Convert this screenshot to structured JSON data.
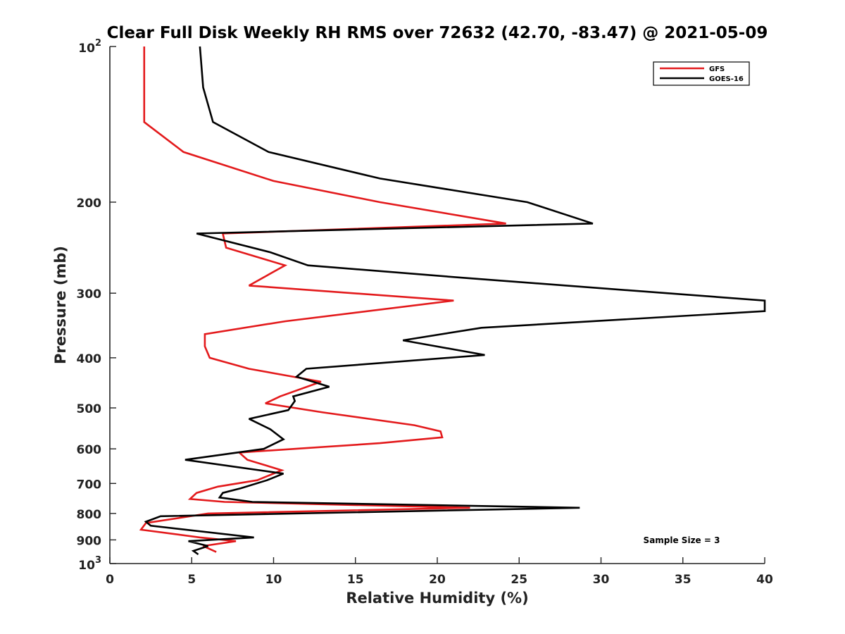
{
  "chart_data": {
    "type": "line",
    "title": "Clear Full Disk Weekly RH RMS over 72632 (42.70, -83.47) @ 2021-05-09",
    "xlabel": "Relative Humidity (%)",
    "ylabel": "Pressure (mb)",
    "xlim": [
      0,
      40
    ],
    "ylim": [
      100,
      1000
    ],
    "yscale": "log",
    "y_reversed": true,
    "grid": false,
    "legend_position": "top-right",
    "x_ticks": [
      {
        "value": 0,
        "label": "0"
      },
      {
        "value": 5,
        "label": "5"
      },
      {
        "value": 10,
        "label": "10"
      },
      {
        "value": 15,
        "label": "15"
      },
      {
        "value": 20,
        "label": "20"
      },
      {
        "value": 25,
        "label": "25"
      },
      {
        "value": 30,
        "label": "30"
      },
      {
        "value": 35,
        "label": "35"
      },
      {
        "value": 40,
        "label": "40"
      }
    ],
    "y_ticks": [
      {
        "value": 100,
        "label": "",
        "base": "10",
        "exp": "2"
      },
      {
        "value": 200,
        "label": "200"
      },
      {
        "value": 300,
        "label": "300"
      },
      {
        "value": 400,
        "label": "400"
      },
      {
        "value": 500,
        "label": "500"
      },
      {
        "value": 600,
        "label": "600"
      },
      {
        "value": 700,
        "label": "700"
      },
      {
        "value": 800,
        "label": "800"
      },
      {
        "value": 900,
        "label": "900"
      },
      {
        "value": 1000,
        "label": "",
        "base": "10",
        "exp": "3"
      }
    ],
    "series": [
      {
        "name": "GFS",
        "color": "#e31a1c",
        "x": [
          2.1,
          2.1,
          2.1,
          4.5,
          10,
          16.5,
          24.2,
          6.9,
          7.1,
          10.7,
          8.5,
          21.0,
          10.7,
          5.8,
          5.8,
          6.1,
          8.5,
          12.9,
          10.4,
          9.5,
          13.0,
          18.6,
          20.2,
          20.3,
          16.5,
          7.9,
          8.4,
          10.5,
          9.0,
          6.6,
          5.3,
          4.9,
          7.0,
          22.0,
          6.0,
          2.2,
          1.9,
          5.5,
          7.7,
          5.7,
          6.5
        ],
        "y": [
          100,
          120,
          140,
          160,
          182,
          200,
          220,
          230,
          245,
          265,
          290,
          310,
          340,
          360,
          380,
          400,
          420,
          445,
          475,
          490,
          510,
          540,
          555,
          570,
          585,
          610,
          630,
          660,
          690,
          710,
          730,
          750,
          760,
          780,
          800,
          835,
          860,
          890,
          905,
          925,
          950
        ]
      },
      {
        "name": "GOES-16",
        "color": "#000000",
        "x": [
          5.5,
          5.7,
          6.3,
          9.7,
          16.5,
          25.5,
          29.5,
          5.3,
          9.8,
          12.1,
          21.5,
          40,
          40,
          22.7,
          17.9,
          22.9,
          12.0,
          11.4,
          13.4,
          11.2,
          11.3,
          10.9,
          8.5,
          9.8,
          10.6,
          9.4,
          4.6,
          10.6,
          9.6,
          8.0,
          6.9,
          6.7,
          8.7,
          28.7,
          3.1,
          2.2,
          2.5,
          8.8,
          4.8,
          6.0,
          5.1,
          5.4
        ],
        "y": [
          100,
          120,
          140,
          160,
          180,
          200,
          220,
          230,
          250,
          265,
          280,
          310,
          325,
          350,
          370,
          395,
          420,
          435,
          455,
          475,
          485,
          505,
          525,
          550,
          575,
          600,
          630,
          670,
          690,
          715,
          730,
          745,
          760,
          780,
          810,
          830,
          845,
          890,
          905,
          925,
          945,
          960
        ]
      }
    ],
    "annotations": [
      {
        "text": "Sample Size = 3"
      }
    ]
  }
}
